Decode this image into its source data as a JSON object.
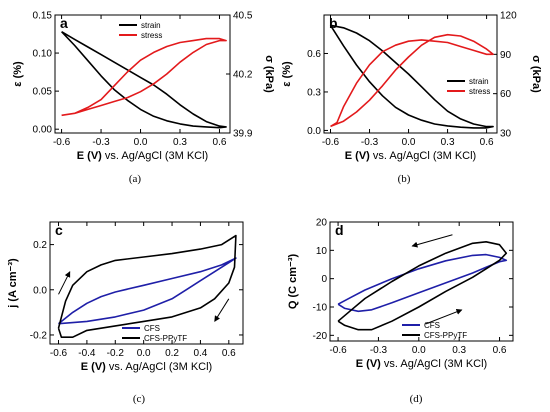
{
  "chart_data": [
    {
      "panel": "a",
      "caption": "(a)",
      "type": "line",
      "xlabel_bold": "E (V)",
      "xlabel_rest": "vs. Ag/AgCl (3M KCl)",
      "ylabel_left": "ε (%)",
      "ylabel_right": "σ (kPa)",
      "xlim": [
        -0.65,
        0.68
      ],
      "ylim_left": [
        -0.005,
        0.15
      ],
      "ylim_right": [
        39.9,
        40.5
      ],
      "x_ticks": [
        -0.6,
        -0.3,
        0.0,
        0.3,
        0.6
      ],
      "x_tick_labels": [
        "-0.6",
        "-0.3",
        "0.0",
        "0.3",
        "0.6"
      ],
      "y_left_ticks": [
        0.0,
        0.05,
        0.1,
        0.15
      ],
      "y_left_tick_labels": [
        "0.00",
        "0.05",
        "0.10",
        "0.15"
      ],
      "y_right_ticks": [
        39.9,
        40.2,
        40.5
      ],
      "y_right_tick_labels": [
        "39.9",
        "40.2",
        "40.5"
      ],
      "legend": [
        "strain",
        "stress"
      ],
      "series": [
        {
          "name": "strain",
          "color": "#000000",
          "axis": "left",
          "points": [
            [
              -0.6,
              0.128
            ],
            [
              -0.5,
              0.11
            ],
            [
              -0.4,
              0.09
            ],
            [
              -0.3,
              0.07
            ],
            [
              -0.2,
              0.052
            ],
            [
              -0.1,
              0.038
            ],
            [
              0.0,
              0.026
            ],
            [
              0.1,
              0.017
            ],
            [
              0.2,
              0.011
            ],
            [
              0.3,
              0.007
            ],
            [
              0.4,
              0.004
            ],
            [
              0.5,
              0.003
            ],
            [
              0.6,
              0.002
            ],
            [
              0.65,
              0.003
            ],
            [
              0.6,
              0.004
            ],
            [
              0.5,
              0.01
            ],
            [
              0.4,
              0.02
            ],
            [
              0.3,
              0.032
            ],
            [
              0.2,
              0.046
            ],
            [
              0.1,
              0.058
            ],
            [
              0.0,
              0.068
            ],
            [
              -0.1,
              0.078
            ],
            [
              -0.2,
              0.088
            ],
            [
              -0.3,
              0.098
            ],
            [
              -0.4,
              0.108
            ],
            [
              -0.5,
              0.118
            ],
            [
              -0.6,
              0.128
            ]
          ]
        },
        {
          "name": "stress",
          "color": "#e31a1c",
          "axis": "right",
          "points": [
            [
              -0.6,
              39.99
            ],
            [
              -0.5,
              40.0
            ],
            [
              -0.4,
              40.03
            ],
            [
              -0.3,
              40.07
            ],
            [
              -0.2,
              40.14
            ],
            [
              -0.1,
              40.21
            ],
            [
              0.0,
              40.27
            ],
            [
              0.1,
              40.31
            ],
            [
              0.2,
              40.34
            ],
            [
              0.3,
              40.36
            ],
            [
              0.4,
              40.37
            ],
            [
              0.5,
              40.38
            ],
            [
              0.6,
              40.38
            ],
            [
              0.65,
              40.37
            ],
            [
              0.6,
              40.37
            ],
            [
              0.5,
              40.35
            ],
            [
              0.4,
              40.31
            ],
            [
              0.3,
              40.26
            ],
            [
              0.2,
              40.2
            ],
            [
              0.1,
              40.15
            ],
            [
              0.0,
              40.11
            ],
            [
              -0.1,
              40.08
            ],
            [
              -0.2,
              40.06
            ],
            [
              -0.3,
              40.04
            ],
            [
              -0.4,
              40.02
            ],
            [
              -0.5,
              40.0
            ],
            [
              -0.6,
              39.99
            ]
          ]
        }
      ]
    },
    {
      "panel": "b",
      "caption": "(b)",
      "type": "line",
      "xlabel_bold": "E (V)",
      "xlabel_rest": "vs. Ag/AgCl (3M KCl)",
      "ylabel_left": "ε (%)",
      "ylabel_right": "σ (kPa)",
      "xlim": [
        -0.65,
        0.68
      ],
      "ylim_left": [
        -0.02,
        0.9
      ],
      "ylim_right": [
        30,
        120
      ],
      "x_ticks": [
        -0.6,
        -0.3,
        0.0,
        0.3,
        0.6
      ],
      "x_tick_labels": [
        "-0.6",
        "-0.3",
        "0.0",
        "0.3",
        "0.6"
      ],
      "y_left_ticks": [
        0.0,
        0.3,
        0.6
      ],
      "y_left_tick_labels": [
        "0.0",
        "0.3",
        "0.6"
      ],
      "y_right_ticks": [
        30,
        60,
        90,
        120
      ],
      "y_right_tick_labels": [
        "30",
        "60",
        "90",
        "120"
      ],
      "legend": [
        "strain",
        "stress"
      ],
      "series": [
        {
          "name": "strain",
          "color": "#000000",
          "axis": "left",
          "points": [
            [
              -0.6,
              0.82
            ],
            [
              -0.5,
              0.8
            ],
            [
              -0.4,
              0.76
            ],
            [
              -0.3,
              0.7
            ],
            [
              -0.2,
              0.62
            ],
            [
              -0.1,
              0.53
            ],
            [
              0.0,
              0.44
            ],
            [
              0.1,
              0.34
            ],
            [
              0.2,
              0.24
            ],
            [
              0.3,
              0.15
            ],
            [
              0.4,
              0.09
            ],
            [
              0.5,
              0.05
            ],
            [
              0.6,
              0.03
            ],
            [
              0.65,
              0.03
            ],
            [
              0.6,
              0.02
            ],
            [
              0.5,
              0.02
            ],
            [
              0.4,
              0.025
            ],
            [
              0.3,
              0.035
            ],
            [
              0.2,
              0.05
            ],
            [
              0.1,
              0.08
            ],
            [
              0.0,
              0.12
            ],
            [
              -0.1,
              0.18
            ],
            [
              -0.2,
              0.27
            ],
            [
              -0.3,
              0.38
            ],
            [
              -0.4,
              0.51
            ],
            [
              -0.5,
              0.66
            ],
            [
              -0.6,
              0.82
            ]
          ]
        },
        {
          "name": "stress",
          "color": "#e31a1c",
          "axis": "right",
          "points": [
            [
              -0.6,
              35
            ],
            [
              -0.55,
              38
            ],
            [
              -0.5,
              50
            ],
            [
              -0.4,
              68
            ],
            [
              -0.3,
              82
            ],
            [
              -0.2,
              92
            ],
            [
              -0.1,
              97
            ],
            [
              0.0,
              100
            ],
            [
              0.1,
              101
            ],
            [
              0.2,
              100
            ],
            [
              0.3,
              99
            ],
            [
              0.4,
              96
            ],
            [
              0.5,
              93
            ],
            [
              0.6,
              90
            ],
            [
              0.65,
              90
            ],
            [
              0.6,
              94
            ],
            [
              0.5,
              100
            ],
            [
              0.4,
              104
            ],
            [
              0.3,
              105
            ],
            [
              0.2,
              103
            ],
            [
              0.1,
              97
            ],
            [
              0.0,
              88
            ],
            [
              -0.1,
              78
            ],
            [
              -0.2,
              66
            ],
            [
              -0.3,
              55
            ],
            [
              -0.4,
              46
            ],
            [
              -0.5,
              39
            ],
            [
              -0.6,
              35
            ]
          ]
        },
        {
          "name": "",
          "color": "#000000",
          "axis": "right",
          "hide_label": true,
          "points": []
        }
      ]
    },
    {
      "panel": "c",
      "caption": "(c)",
      "type": "line",
      "xlabel_bold": "E (V)",
      "xlabel_rest": "vs. Ag/AgCl (3M KCl)",
      "ylabel_left": "j (A cm⁻³)",
      "xlim": [
        -0.66,
        0.7
      ],
      "ylim_left": [
        -0.24,
        0.3
      ],
      "x_ticks": [
        -0.6,
        -0.4,
        -0.2,
        0.0,
        0.2,
        0.4,
        0.6
      ],
      "x_tick_labels": [
        "-0.6",
        "-0.4",
        "-0.2",
        "0.0",
        "0.2",
        "0.4",
        "0.6"
      ],
      "y_left_ticks": [
        -0.2,
        0.0,
        0.2
      ],
      "y_left_tick_labels": [
        "-0.2",
        "0.0",
        "0.2"
      ],
      "legend": [
        "CFS",
        "CFS-PPyTF"
      ],
      "series": [
        {
          "name": "CFS",
          "color": "#1f1fa8",
          "axis": "left",
          "points": [
            [
              -0.6,
              -0.15
            ],
            [
              -0.5,
              -0.1
            ],
            [
              -0.4,
              -0.06
            ],
            [
              -0.3,
              -0.03
            ],
            [
              -0.2,
              -0.01
            ],
            [
              0.0,
              0.02
            ],
            [
              0.2,
              0.05
            ],
            [
              0.4,
              0.08
            ],
            [
              0.55,
              0.11
            ],
            [
              0.65,
              0.14
            ],
            [
              0.6,
              0.12
            ],
            [
              0.5,
              0.08
            ],
            [
              0.4,
              0.04
            ],
            [
              0.3,
              0.0
            ],
            [
              0.2,
              -0.04
            ],
            [
              0.0,
              -0.09
            ],
            [
              -0.2,
              -0.12
            ],
            [
              -0.4,
              -0.14
            ],
            [
              -0.6,
              -0.15
            ]
          ]
        },
        {
          "name": "CFS-PPyTF",
          "color": "#000000",
          "axis": "left",
          "points": [
            [
              -0.6,
              -0.17
            ],
            [
              -0.55,
              -0.05
            ],
            [
              -0.5,
              0.02
            ],
            [
              -0.4,
              0.08
            ],
            [
              -0.3,
              0.11
            ],
            [
              -0.2,
              0.13
            ],
            [
              0.0,
              0.145
            ],
            [
              0.2,
              0.16
            ],
            [
              0.4,
              0.18
            ],
            [
              0.55,
              0.2
            ],
            [
              0.65,
              0.24
            ],
            [
              0.64,
              0.1
            ],
            [
              0.6,
              0.03
            ],
            [
              0.5,
              -0.04
            ],
            [
              0.4,
              -0.08
            ],
            [
              0.2,
              -0.12
            ],
            [
              0.0,
              -0.14
            ],
            [
              -0.2,
              -0.16
            ],
            [
              -0.4,
              -0.18
            ],
            [
              -0.5,
              -0.21
            ],
            [
              -0.58,
              -0.21
            ],
            [
              -0.6,
              -0.17
            ]
          ]
        }
      ],
      "arrows": [
        [
          -0.6,
          -0.02,
          -0.52,
          0.08
        ],
        [
          0.6,
          -0.04,
          0.5,
          -0.14
        ]
      ]
    },
    {
      "panel": "d",
      "caption": "(d)",
      "type": "line",
      "xlabel_bold": "E (V)",
      "xlabel_rest": "vs. Ag/AgCl (3M KCl)",
      "ylabel_left": "Q (C cm⁻³)",
      "xlim": [
        -0.66,
        0.7
      ],
      "ylim_left": [
        -22,
        20
      ],
      "x_ticks": [
        -0.6,
        -0.3,
        0.0,
        0.3,
        0.6
      ],
      "x_tick_labels": [
        "-0.6",
        "-0.3",
        "0.0",
        "0.3",
        "0.6"
      ],
      "y_left_ticks": [
        -20,
        -10,
        0,
        10,
        20
      ],
      "y_left_tick_labels": [
        "-20",
        "-10",
        "0",
        "10",
        "20"
      ],
      "legend": [
        "CFS",
        "CFS-PPyTF"
      ],
      "series": [
        {
          "name": "CFS",
          "color": "#1f1fa8",
          "axis": "left",
          "points": [
            [
              -0.6,
              -9
            ],
            [
              -0.5,
              -6.5
            ],
            [
              -0.4,
              -4
            ],
            [
              -0.2,
              0
            ],
            [
              0.0,
              3.5
            ],
            [
              0.2,
              6.3
            ],
            [
              0.4,
              8.2
            ],
            [
              0.5,
              8.5
            ],
            [
              0.6,
              7.5
            ],
            [
              0.65,
              6.5
            ],
            [
              0.6,
              6
            ],
            [
              0.5,
              4
            ],
            [
              0.4,
              2
            ],
            [
              0.2,
              -1.5
            ],
            [
              0.0,
              -5
            ],
            [
              -0.2,
              -8.5
            ],
            [
              -0.35,
              -11
            ],
            [
              -0.45,
              -11.5
            ],
            [
              -0.55,
              -10.5
            ],
            [
              -0.6,
              -9
            ]
          ]
        },
        {
          "name": "CFS-PPyTF",
          "color": "#000000",
          "axis": "left",
          "points": [
            [
              -0.6,
              -15
            ],
            [
              -0.5,
              -11
            ],
            [
              -0.4,
              -7
            ],
            [
              -0.2,
              -1
            ],
            [
              0.0,
              4.5
            ],
            [
              0.2,
              9
            ],
            [
              0.4,
              12.5
            ],
            [
              0.5,
              13
            ],
            [
              0.6,
              12
            ],
            [
              0.65,
              9
            ],
            [
              0.6,
              6.5
            ],
            [
              0.5,
              3.5
            ],
            [
              0.4,
              0.5
            ],
            [
              0.2,
              -4.5
            ],
            [
              0.0,
              -10
            ],
            [
              -0.2,
              -15
            ],
            [
              -0.35,
              -18
            ],
            [
              -0.45,
              -18
            ],
            [
              -0.55,
              -16.5
            ],
            [
              -0.6,
              -15
            ]
          ]
        }
      ],
      "arrows": [
        [
          0.25,
          15.5,
          -0.05,
          11.5
        ],
        [
          0.05,
          -16,
          0.32,
          -11
        ]
      ]
    }
  ]
}
